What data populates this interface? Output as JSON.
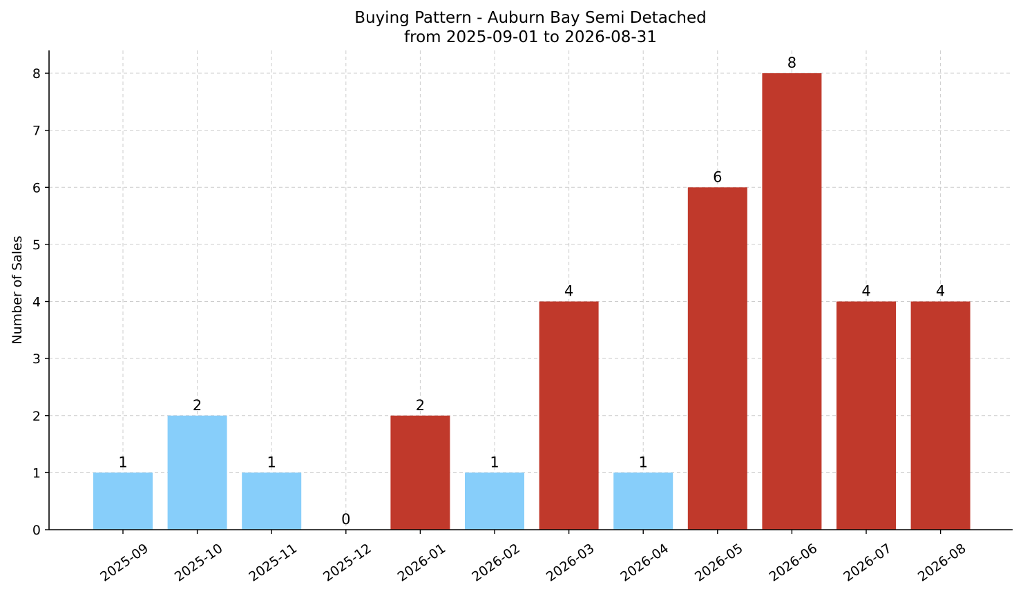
{
  "chart_data": {
    "type": "bar",
    "title": "Buying Pattern - Auburn Bay Semi Detached",
    "subtitle": "from 2025-09-01 to 2026-08-31",
    "ylabel": "Number of Sales",
    "xlabel": "",
    "categories": [
      "2025-09",
      "2025-10",
      "2025-11",
      "2025-12",
      "2026-01",
      "2026-02",
      "2026-03",
      "2026-04",
      "2026-05",
      "2026-06",
      "2026-07",
      "2026-08"
    ],
    "values": [
      1,
      2,
      1,
      0,
      2,
      1,
      4,
      1,
      6,
      8,
      4,
      4
    ],
    "ylim": [
      0,
      8.4
    ],
    "yticks": [
      0,
      1,
      2,
      3,
      4,
      5,
      6,
      7,
      8
    ],
    "grid": true,
    "colors": {
      "low": "#87CEFA",
      "high": "#C0392B"
    },
    "bar_colors": [
      "low",
      "low",
      "low",
      "low",
      "high",
      "low",
      "high",
      "low",
      "high",
      "high",
      "high",
      "high"
    ]
  }
}
